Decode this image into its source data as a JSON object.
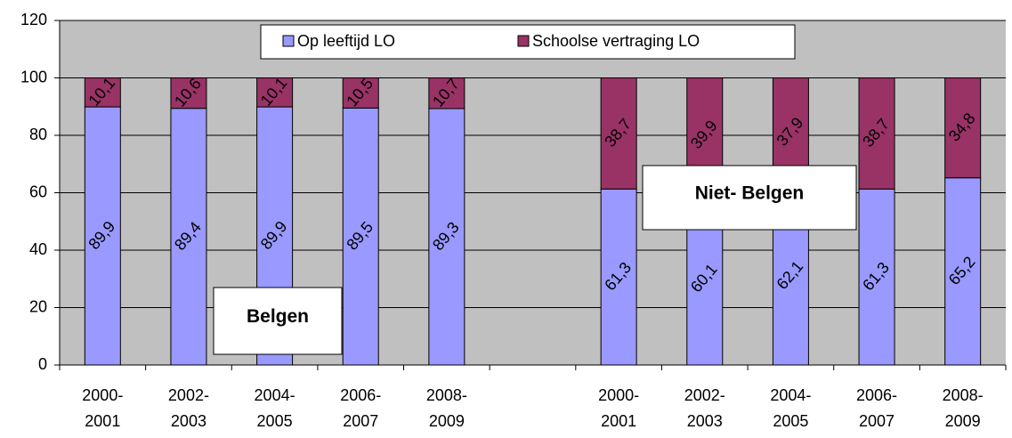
{
  "chart_data": {
    "type": "stacked_bar",
    "categories": [
      "2000-\n2001",
      "2002-\n2003",
      "2004-\n2005",
      "2006-\n2007",
      "2008-\n2009",
      null,
      "2000-\n2001",
      "2002-\n2003",
      "2004-\n2005",
      "2006-\n2007",
      "2008-\n2009"
    ],
    "series": [
      {
        "name": "Op leeftijd LO",
        "color": "#9999ff",
        "values": [
          89.9,
          89.4,
          89.9,
          89.5,
          89.3,
          null,
          61.3,
          60.1,
          62.1,
          61.3,
          65.2
        ],
        "value_labels": [
          "89,9",
          "89,4",
          "89,9",
          "89,5",
          "89,3",
          null,
          "61,3",
          "60,1",
          "62,1",
          "61,3",
          "65,2"
        ]
      },
      {
        "name": "Schoolse vertraging LO",
        "color": "#993366",
        "values": [
          10.1,
          10.6,
          10.1,
          10.5,
          10.7,
          null,
          38.7,
          39.9,
          37.9,
          38.7,
          34.8
        ],
        "value_labels": [
          "10,1",
          "10,6",
          "10,1",
          "10,5",
          "10,7",
          null,
          "38,7",
          "39,9",
          "37,9",
          "38,7",
          "34,8"
        ]
      }
    ],
    "ylim": [
      0,
      120
    ],
    "yticks": [
      0,
      20,
      40,
      60,
      80,
      100,
      120
    ],
    "grid": true,
    "legend": "top",
    "plot_background": "#c0c0c0",
    "annotations": [
      "Belgen",
      "Niet- Belgen"
    ]
  }
}
